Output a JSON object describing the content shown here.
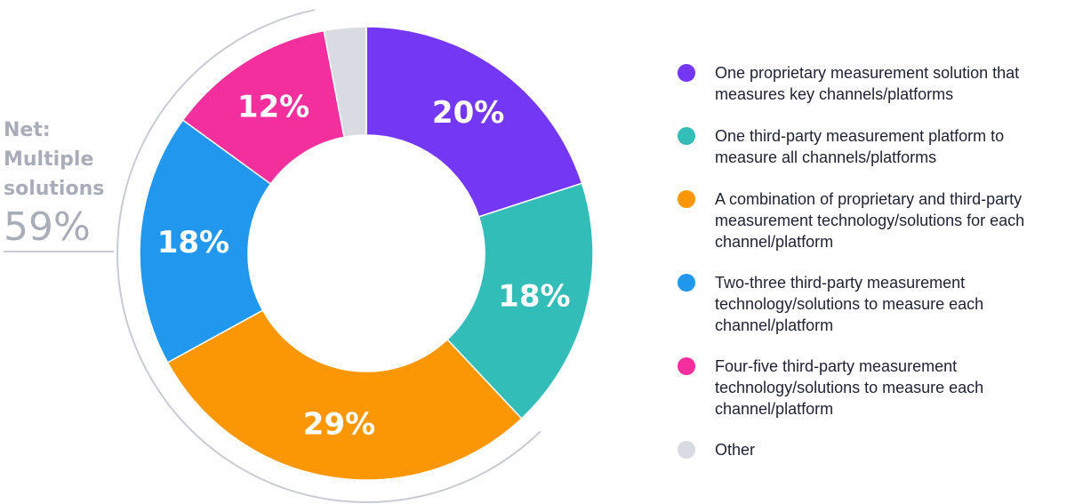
{
  "chart_data": {
    "type": "pie",
    "variant": "donut",
    "slices": [
      {
        "label": "One proprietary measurement solution that measures key channels/platforms",
        "value": 20,
        "display": "20%",
        "color": "#7438f5"
      },
      {
        "label": "One third-party measurement platform to measure all channels/platforms",
        "value": 18,
        "display": "18%",
        "color": "#33bdb9"
      },
      {
        "label": "A combination of proprietary and third-party measurement technology/solutions for each channel/platform",
        "value": 29,
        "display": "29%",
        "color": "#fb9705"
      },
      {
        "label": "Two-three third-party measurement technology/solutions to measure each channel/platform",
        "value": 18,
        "display": "18%",
        "color": "#2197ee"
      },
      {
        "label": "Four-five third-party measurement technology/solutions to measure each channel/platform",
        "value": 12,
        "display": "12%",
        "color": "#f22f9c"
      },
      {
        "label": "Other",
        "value": 3,
        "display": "",
        "color": "#d9dbe2"
      }
    ],
    "legend_position": "right",
    "annotation": {
      "title_lines": [
        "Net:",
        "Multiple",
        "solutions"
      ],
      "value": "59%",
      "color": "#a9acb9"
    }
  }
}
